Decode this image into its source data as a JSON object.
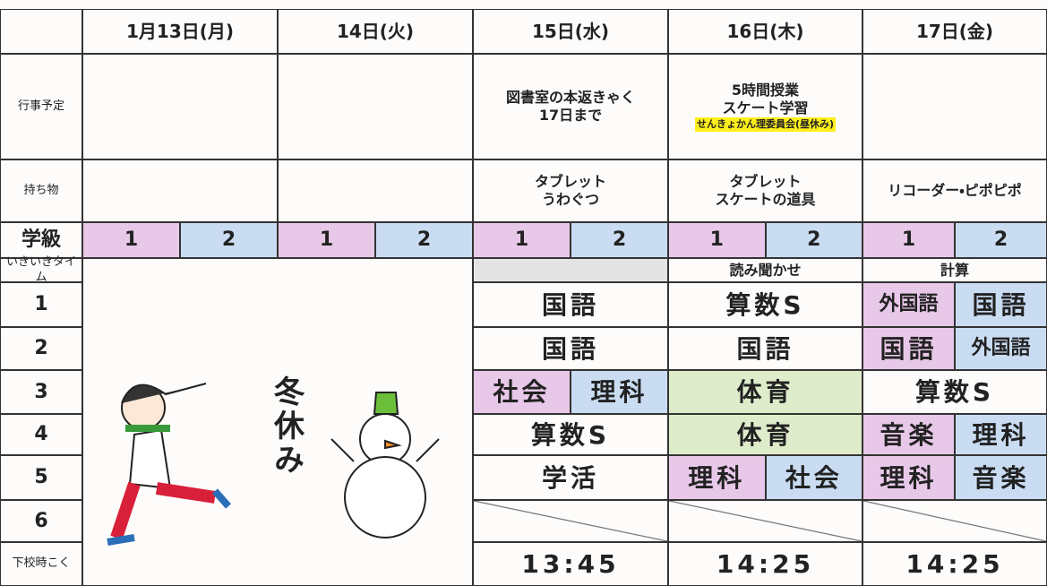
{
  "days": [
    "1月13日(月)",
    "14日(火)",
    "15日(水)",
    "16日(木)",
    "17日(金)"
  ],
  "row_labels": [
    "行事予定",
    "持ち物",
    "学級",
    "いきいきタイム",
    "1",
    "2",
    "3",
    "4",
    "5",
    "6",
    "下校時こく"
  ],
  "class_labels": [
    "1",
    "2"
  ],
  "events": {
    "wed": [
      "図書室の本返きゃく",
      "17日まで"
    ],
    "thu": [
      "5時間授業",
      "スケート学習",
      "せんきょかん理委員会(昼休み)"
    ]
  },
  "belongings": {
    "wed": [
      "タブレット",
      "うわぐつ"
    ],
    "thu": [
      "タブレット",
      "スケートの道具"
    ],
    "fri": [
      "リコーダー・ピポピポ"
    ]
  },
  "ikiiki": {
    "thu": "読み聞かせ",
    "fri": "計算"
  },
  "winter_break": "冬休み",
  "periods": {
    "wed": [
      [
        "国語"
      ],
      [
        "国語"
      ],
      [
        "社会",
        "理科"
      ],
      [
        "算数S"
      ],
      [
        "学活"
      ],
      []
    ],
    "thu": [
      [
        "算数S"
      ],
      [
        "国語"
      ],
      [
        "体育"
      ],
      [
        "体育"
      ],
      [
        "理科",
        "社会"
      ],
      []
    ],
    "fri": [
      [
        "外国語",
        "国語"
      ],
      [
        "国語",
        "外国語"
      ],
      [
        "算数S"
      ],
      [
        "音楽",
        "理科"
      ],
      [
        "理科",
        "音楽"
      ],
      []
    ]
  },
  "dismissal": {
    "wed": "13:45",
    "thu": "14:25",
    "fri": "14:25"
  }
}
